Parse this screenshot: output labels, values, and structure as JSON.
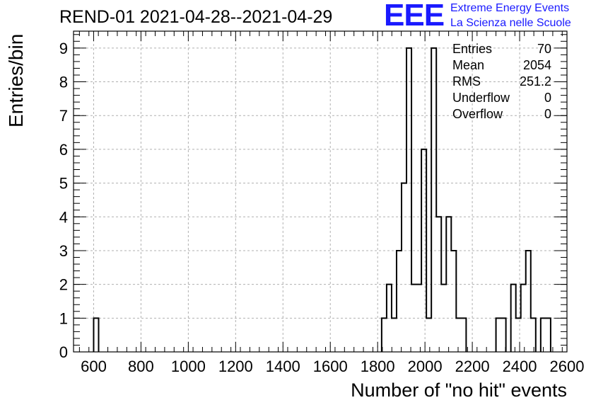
{
  "header": {
    "title": "REND-01 2021-04-28--2021-04-29",
    "logo_mark": "EEE",
    "logo_line1": "Extreme Energy Events",
    "logo_line2": "La Scienza nelle Scuole"
  },
  "colors": {
    "logo": "#1a1aff",
    "line": "#000000",
    "grid": "#b0b0b0"
  },
  "stats": [
    {
      "label": "Entries",
      "value": "70"
    },
    {
      "label": "Mean",
      "value": "2054"
    },
    {
      "label": "RMS",
      "value": "251.2"
    },
    {
      "label": "Underflow",
      "value": "0"
    },
    {
      "label": "Overflow",
      "value": "0"
    }
  ],
  "chart_data": {
    "type": "bar",
    "histogram": true,
    "xlabel": "Number of \"no hit\" events",
    "ylabel": "Entries/bin",
    "xlim": [
      515,
      2600
    ],
    "ylim": [
      0,
      9.5
    ],
    "x_ticks": [
      600,
      800,
      1000,
      1200,
      1400,
      1600,
      1800,
      2000,
      2200,
      2400,
      2600
    ],
    "y_ticks": [
      0,
      1,
      2,
      3,
      4,
      5,
      6,
      7,
      8,
      9
    ],
    "grid": true,
    "bin_width": 21,
    "bins": [
      {
        "x0": 600,
        "value": 1
      },
      {
        "x0": 1817,
        "value": 1
      },
      {
        "x0": 1838,
        "value": 2
      },
      {
        "x0": 1859,
        "value": 1
      },
      {
        "x0": 1880,
        "value": 3
      },
      {
        "x0": 1901,
        "value": 5
      },
      {
        "x0": 1922,
        "value": 9
      },
      {
        "x0": 1943,
        "value": 2
      },
      {
        "x0": 1964,
        "value": 2
      },
      {
        "x0": 1985,
        "value": 6
      },
      {
        "x0": 2006,
        "value": 1
      },
      {
        "x0": 2027,
        "value": 9
      },
      {
        "x0": 2048,
        "value": 4
      },
      {
        "x0": 2069,
        "value": 2
      },
      {
        "x0": 2090,
        "value": 4
      },
      {
        "x0": 2111,
        "value": 3
      },
      {
        "x0": 2132,
        "value": 1
      },
      {
        "x0": 2153,
        "value": 1
      },
      {
        "x0": 2300,
        "value": 1
      },
      {
        "x0": 2321,
        "value": 1
      },
      {
        "x0": 2363,
        "value": 2
      },
      {
        "x0": 2384,
        "value": 1
      },
      {
        "x0": 2405,
        "value": 2
      },
      {
        "x0": 2426,
        "value": 3
      },
      {
        "x0": 2447,
        "value": 1
      },
      {
        "x0": 2489,
        "value": 1
      },
      {
        "x0": 2510,
        "value": 1
      }
    ]
  }
}
